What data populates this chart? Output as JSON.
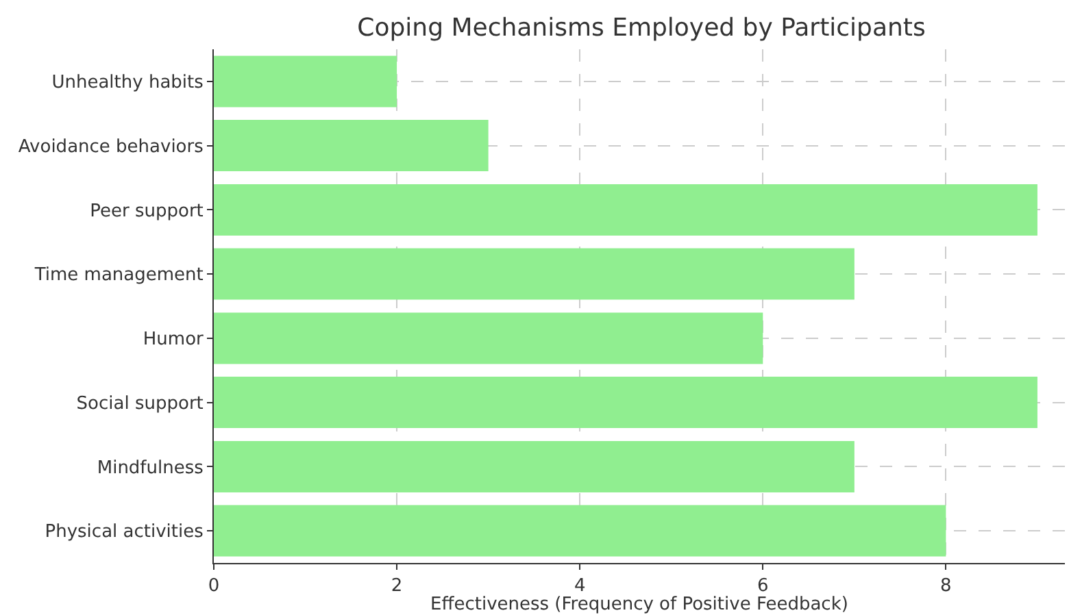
{
  "chart_data": {
    "type": "bar",
    "orientation": "horizontal",
    "title": "Coping Mechanisms Employed by Participants",
    "xlabel": "Effectiveness (Frequency of Positive Feedback)",
    "categories": [
      "Unhealthy habits",
      "Avoidance behaviors",
      "Peer support",
      "Time management",
      "Humor",
      "Social support",
      "Mindfulness",
      "Physical activities"
    ],
    "values": [
      2,
      3,
      9,
      7,
      6,
      9,
      7,
      8
    ],
    "color": "#90ee90",
    "xlim": [
      0,
      9.3
    ],
    "xticks": [
      0,
      2,
      4,
      6,
      8
    ],
    "grid": true
  }
}
